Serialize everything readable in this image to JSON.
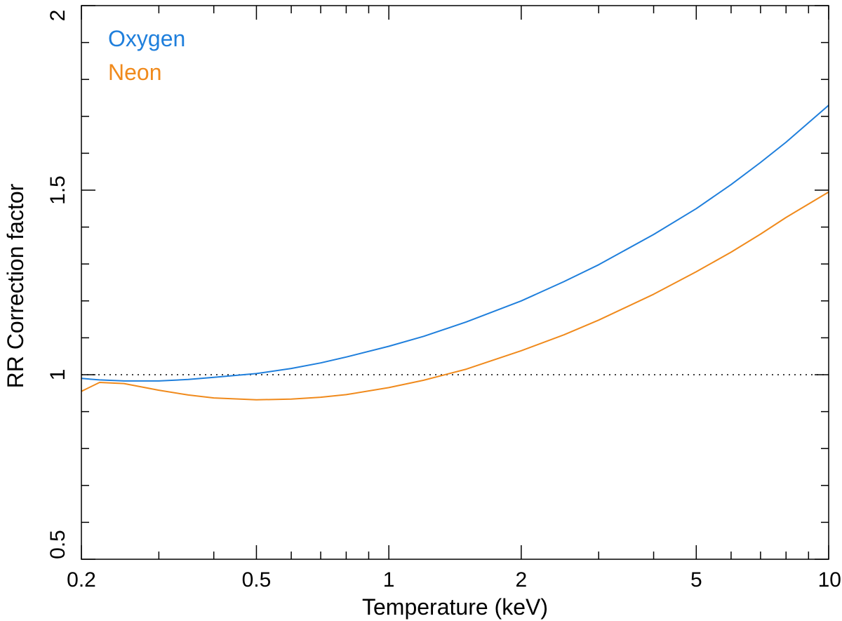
{
  "chart_data": {
    "type": "line",
    "title": "",
    "xlabel": "Temperature (keV)",
    "ylabel": "RR Correction factor",
    "xscale": "log",
    "xlim": [
      0.2,
      10
    ],
    "ylim": [
      0.5,
      2
    ],
    "x_ticks": [
      0.2,
      0.5,
      1,
      2,
      5,
      10
    ],
    "x_tick_labels": [
      "0.2",
      "0.5",
      "1",
      "2",
      "5",
      "10"
    ],
    "x_minor_ticks": [
      0.3,
      0.4,
      0.6,
      0.7,
      0.8,
      0.9,
      3,
      4,
      6,
      7,
      8,
      9
    ],
    "y_ticks": [
      0.5,
      1,
      1.5,
      2
    ],
    "y_tick_labels": [
      "0.5",
      "1",
      "1.5",
      "2"
    ],
    "y_minor_ticks": [
      0.6,
      0.7,
      0.8,
      0.9,
      1.1,
      1.2,
      1.3,
      1.4,
      1.6,
      1.7,
      1.8,
      1.9
    ],
    "reference_line": {
      "y": 1,
      "style": "dotted"
    },
    "legend_position": "top-left",
    "series": [
      {
        "name": "Oxygen",
        "color": "#1f7fdc",
        "x": [
          0.2,
          0.22,
          0.25,
          0.3,
          0.35,
          0.4,
          0.5,
          0.6,
          0.7,
          0.8,
          1.0,
          1.2,
          1.5,
          2.0,
          2.5,
          3.0,
          4.0,
          5.0,
          6.0,
          7.0,
          8.0,
          10.0
        ],
        "values": [
          0.99,
          0.986,
          0.983,
          0.983,
          0.987,
          0.993,
          1.003,
          1.017,
          1.032,
          1.048,
          1.077,
          1.104,
          1.143,
          1.2,
          1.252,
          1.298,
          1.38,
          1.45,
          1.515,
          1.575,
          1.63,
          1.73
        ]
      },
      {
        "name": "Neon",
        "color": "#f08a1c",
        "x": [
          0.2,
          0.22,
          0.25,
          0.3,
          0.35,
          0.4,
          0.5,
          0.6,
          0.7,
          0.8,
          1.0,
          1.2,
          1.5,
          2.0,
          2.5,
          3.0,
          4.0,
          5.0,
          6.0,
          7.0,
          8.0,
          10.0
        ],
        "values": [
          0.955,
          0.979,
          0.976,
          0.958,
          0.945,
          0.937,
          0.932,
          0.934,
          0.939,
          0.946,
          0.965,
          0.985,
          1.015,
          1.065,
          1.108,
          1.148,
          1.218,
          1.279,
          1.332,
          1.381,
          1.426,
          1.495
        ]
      }
    ]
  }
}
